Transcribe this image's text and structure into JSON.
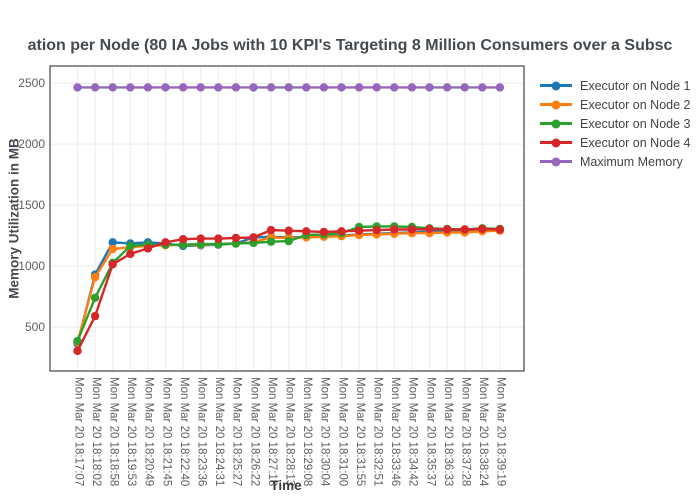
{
  "page": {
    "background": "#ffffff"
  },
  "chart_data": {
    "type": "line",
    "title": "ation per Node (80 IA Jobs with 10 KPI's Targeting 8 Million Consumers over a Subsc",
    "xlabel": "Time",
    "ylabel": "Memory Utilization in MB",
    "x_categories": [
      "Mon Mar 20 18:17:07",
      "Mon Mar 20 18:18:02",
      "Mon Mar 20 18:18:58",
      "Mon Mar 20 18:19:53",
      "Mon Mar 20 18:20:49",
      "Mon Mar 20 18:21:45",
      "Mon Mar 20 18:22:40",
      "Mon Mar 20 18:23:36",
      "Mon Mar 20 18:24:31",
      "Mon Mar 20 18:25:27",
      "Mon Mar 20 18:26:22",
      "Mon Mar 20 18:27:18",
      "Mon Mar 20 18:28:13",
      "Mon Mar 20 18:29:08",
      "Mon Mar 20 18:30:04",
      "Mon Mar 20 18:31:00",
      "Mon Mar 20 18:31:55",
      "Mon Mar 20 18:32:51",
      "Mon Mar 20 18:33:46",
      "Mon Mar 20 18:34:42",
      "Mon Mar 20 18:35:37",
      "Mon Mar 20 18:36:33",
      "Mon Mar 20 18:37:28",
      "Mon Mar 20 18:38:24",
      "Mon Mar 20 18:39:19"
    ],
    "yticks": [
      500,
      1000,
      1500,
      2000,
      2500
    ],
    "ylim": [
      140,
      2640
    ],
    "grid": true,
    "legend_position": "right",
    "series": [
      {
        "name": "Executor on Node 1",
        "color": "#1f77b4",
        "values": [
          365,
          930,
          1195,
          1185,
          1195,
          1185,
          1165,
          1170,
          1175,
          1185,
          1235,
          1240,
          1235,
          1240,
          1245,
          1250,
          1260,
          1265,
          1270,
          1275,
          1285,
          1290,
          1290,
          1295,
          1300
        ]
      },
      {
        "name": "Executor on Node 2",
        "color": "#ff7f0e",
        "values": [
          375,
          910,
          1140,
          1155,
          1165,
          1170,
          1175,
          1175,
          1180,
          1185,
          1195,
          1235,
          1230,
          1235,
          1240,
          1245,
          1255,
          1260,
          1265,
          1270,
          1270,
          1275,
          1275,
          1285,
          1290
        ]
      },
      {
        "name": "Executor on Node 3",
        "color": "#2ca02c",
        "values": [
          385,
          740,
          1025,
          1165,
          1175,
          1175,
          1175,
          1180,
          1180,
          1185,
          1190,
          1200,
          1205,
          1255,
          1260,
          1270,
          1320,
          1325,
          1325,
          1320,
          1310,
          1305,
          1300,
          1310,
          1305
        ]
      },
      {
        "name": "Executor on Node 4",
        "color": "#d62728",
        "values": [
          305,
          590,
          1015,
          1100,
          1145,
          1195,
          1220,
          1225,
          1225,
          1230,
          1235,
          1295,
          1290,
          1285,
          1280,
          1285,
          1290,
          1295,
          1300,
          1300,
          1305,
          1300,
          1300,
          1305,
          1300
        ]
      },
      {
        "name": "Maximum Memory",
        "color": "#9467bd",
        "values": [
          2465,
          2465,
          2465,
          2465,
          2465,
          2465,
          2465,
          2465,
          2465,
          2465,
          2465,
          2465,
          2465,
          2465,
          2465,
          2465,
          2465,
          2465,
          2465,
          2465,
          2465,
          2465,
          2465,
          2465,
          2465
        ]
      }
    ],
    "style": {
      "grid_color": "#ececec",
      "border_color": "#444444",
      "plot_bg": "#ffffff"
    }
  }
}
